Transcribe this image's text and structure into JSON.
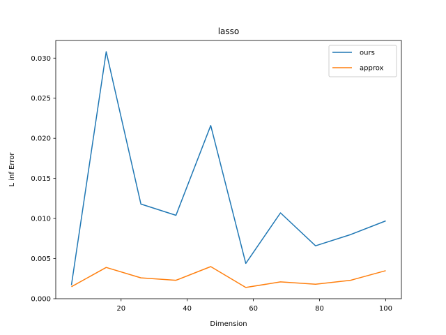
{
  "chart_data": {
    "type": "line",
    "title": "lasso",
    "xlabel": "Dimension",
    "ylabel": "L inf Error",
    "xlim": [
      0.25,
      104.75
    ],
    "ylim": [
      0.0,
      0.0322
    ],
    "xticks": [
      20,
      40,
      60,
      80,
      100
    ],
    "xtick_labels": [
      "20",
      "40",
      "60",
      "80",
      "100"
    ],
    "yticks": [
      0.0,
      0.005,
      0.01,
      0.015,
      0.02,
      0.025,
      0.03
    ],
    "ytick_labels": [
      "0.000",
      "0.005",
      "0.010",
      "0.015",
      "0.020",
      "0.025",
      "0.030"
    ],
    "grid": false,
    "legend_position": "top-right",
    "x": [
      5,
      15.5,
      26,
      36.6,
      47.1,
      57.7,
      68.2,
      78.8,
      89.4,
      100
    ],
    "series": [
      {
        "name": "ours",
        "color": "#1f77b4",
        "values": [
          0.0017,
          0.0308,
          0.0118,
          0.0104,
          0.0216,
          0.0044,
          0.0107,
          0.0066,
          0.008,
          0.0097
        ]
      },
      {
        "name": "approx",
        "color": "#ff7f0e",
        "values": [
          0.0015,
          0.0039,
          0.0026,
          0.0023,
          0.004,
          0.0014,
          0.0021,
          0.0018,
          0.0023,
          0.0035
        ]
      }
    ]
  }
}
